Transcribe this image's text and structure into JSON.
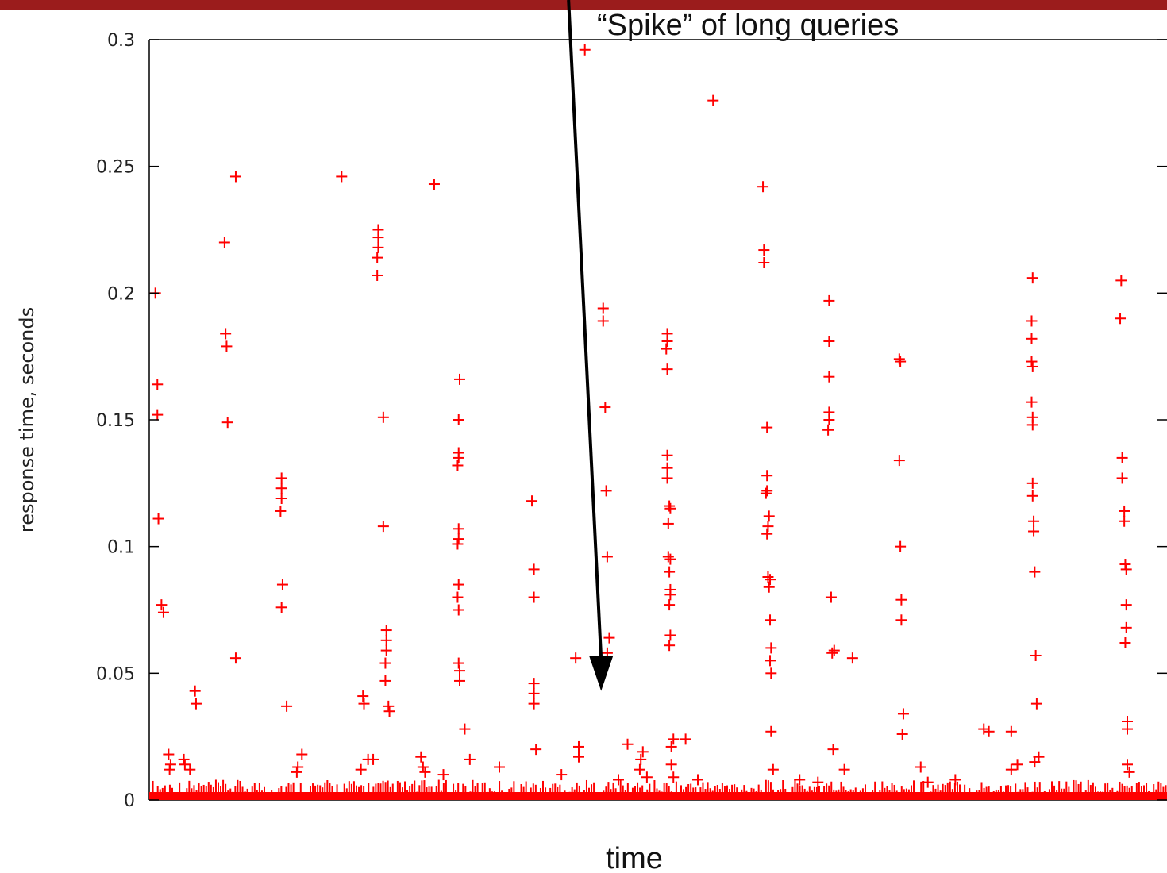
{
  "page": {
    "top_bar_color": "#9b1c1c"
  },
  "chart_data": {
    "type": "scatter",
    "title": "",
    "xlabel": "time",
    "ylabel": "response time, seconds",
    "xlim": [
      0,
      100
    ],
    "ylim": [
      0,
      0.3
    ],
    "yticks": [
      0,
      0.05,
      0.1,
      0.15,
      0.2,
      0.25,
      0.3
    ],
    "ytick_labels": [
      "0",
      "0.05",
      "0.1",
      "0.15",
      "0.2",
      "0.25",
      "0.3"
    ],
    "grid": false,
    "legend": "none",
    "marker": "+",
    "color": "#ff0000",
    "annotation": {
      "text": "“Spike” of long queries",
      "arrow_from": [
        41.2,
        0.31
      ],
      "arrow_to": [
        44.4,
        0.043
      ]
    },
    "series": [
      {
        "points": [
          [
            0.6,
            0.2
          ],
          [
            0.8,
            0.164
          ],
          [
            0.8,
            0.152
          ],
          [
            0.9,
            0.111
          ],
          [
            1.2,
            0.077
          ],
          [
            1.4,
            0.074
          ],
          [
            4.5,
            0.043
          ],
          [
            4.6,
            0.038
          ],
          [
            7.5,
            0.184
          ],
          [
            7.6,
            0.179
          ],
          [
            7.4,
            0.22
          ],
          [
            7.7,
            0.149
          ],
          [
            8.5,
            0.246
          ],
          [
            8.5,
            0.056
          ],
          [
            13.0,
            0.127
          ],
          [
            13.0,
            0.123
          ],
          [
            13.0,
            0.119
          ],
          [
            12.9,
            0.114
          ],
          [
            13.1,
            0.085
          ],
          [
            13.0,
            0.076
          ],
          [
            13.5,
            0.037
          ],
          [
            18.9,
            0.246
          ],
          [
            21.0,
            0.041
          ],
          [
            21.1,
            0.038
          ],
          [
            22.5,
            0.225
          ],
          [
            22.5,
            0.222
          ],
          [
            22.5,
            0.218
          ],
          [
            22.4,
            0.214
          ],
          [
            22.4,
            0.207
          ],
          [
            23.0,
            0.151
          ],
          [
            23.0,
            0.108
          ],
          [
            23.3,
            0.067
          ],
          [
            23.3,
            0.063
          ],
          [
            23.3,
            0.059
          ],
          [
            23.2,
            0.054
          ],
          [
            23.2,
            0.047
          ],
          [
            23.5,
            0.037
          ],
          [
            23.6,
            0.035
          ],
          [
            28.0,
            0.243
          ],
          [
            30.5,
            0.166
          ],
          [
            30.4,
            0.15
          ],
          [
            30.4,
            0.137
          ],
          [
            30.4,
            0.135
          ],
          [
            30.3,
            0.132
          ],
          [
            30.4,
            0.107
          ],
          [
            30.4,
            0.103
          ],
          [
            30.3,
            0.101
          ],
          [
            30.4,
            0.085
          ],
          [
            30.3,
            0.08
          ],
          [
            30.4,
            0.075
          ],
          [
            30.4,
            0.054
          ],
          [
            30.5,
            0.051
          ],
          [
            30.5,
            0.047
          ],
          [
            31.0,
            0.028
          ],
          [
            37.6,
            0.118
          ],
          [
            37.8,
            0.091
          ],
          [
            37.8,
            0.08
          ],
          [
            37.8,
            0.046
          ],
          [
            37.8,
            0.042
          ],
          [
            37.8,
            0.038
          ],
          [
            38.0,
            0.02
          ],
          [
            41.9,
            0.056
          ],
          [
            42.2,
            0.021
          ],
          [
            42.2,
            0.017
          ],
          [
            42.8,
            0.296
          ],
          [
            44.6,
            0.194
          ],
          [
            44.6,
            0.189
          ],
          [
            44.8,
            0.155
          ],
          [
            44.9,
            0.122
          ],
          [
            45.0,
            0.096
          ],
          [
            45.2,
            0.064
          ],
          [
            45.0,
            0.058
          ],
          [
            47.0,
            0.022
          ],
          [
            48.3,
            0.016
          ],
          [
            48.5,
            0.019
          ],
          [
            48.2,
            0.012
          ],
          [
            50.9,
            0.184
          ],
          [
            50.9,
            0.181
          ],
          [
            50.8,
            0.178
          ],
          [
            50.9,
            0.17
          ],
          [
            50.9,
            0.136
          ],
          [
            50.9,
            0.131
          ],
          [
            50.9,
            0.127
          ],
          [
            51.1,
            0.116
          ],
          [
            51.2,
            0.115
          ],
          [
            51.0,
            0.109
          ],
          [
            51.0,
            0.096
          ],
          [
            51.2,
            0.095
          ],
          [
            51.1,
            0.09
          ],
          [
            51.2,
            0.083
          ],
          [
            51.2,
            0.081
          ],
          [
            51.1,
            0.077
          ],
          [
            51.2,
            0.065
          ],
          [
            51.1,
            0.061
          ],
          [
            51.5,
            0.024
          ],
          [
            51.3,
            0.021
          ],
          [
            52.7,
            0.024
          ],
          [
            55.4,
            0.276
          ],
          [
            60.3,
            0.242
          ],
          [
            60.4,
            0.217
          ],
          [
            60.4,
            0.212
          ],
          [
            60.7,
            0.147
          ],
          [
            60.7,
            0.128
          ],
          [
            60.7,
            0.122
          ],
          [
            60.6,
            0.121
          ],
          [
            60.9,
            0.112
          ],
          [
            60.8,
            0.108
          ],
          [
            60.7,
            0.105
          ],
          [
            60.8,
            0.088
          ],
          [
            61.0,
            0.087
          ],
          [
            60.9,
            0.084
          ],
          [
            61.0,
            0.071
          ],
          [
            61.1,
            0.06
          ],
          [
            61.0,
            0.055
          ],
          [
            61.1,
            0.05
          ],
          [
            61.1,
            0.027
          ],
          [
            61.3,
            0.012
          ],
          [
            66.8,
            0.197
          ],
          [
            66.8,
            0.181
          ],
          [
            66.8,
            0.167
          ],
          [
            66.8,
            0.153
          ],
          [
            66.8,
            0.15
          ],
          [
            66.7,
            0.146
          ],
          [
            67.0,
            0.08
          ],
          [
            67.3,
            0.059
          ],
          [
            67.1,
            0.058
          ],
          [
            67.2,
            0.02
          ],
          [
            69.1,
            0.056
          ],
          [
            73.7,
            0.174
          ],
          [
            73.8,
            0.173
          ],
          [
            73.7,
            0.134
          ],
          [
            73.8,
            0.1
          ],
          [
            73.9,
            0.079
          ],
          [
            73.9,
            0.071
          ],
          [
            74.1,
            0.034
          ],
          [
            74.0,
            0.026
          ],
          [
            75.8,
            0.013
          ],
          [
            82.0,
            0.028
          ],
          [
            82.5,
            0.027
          ],
          [
            84.7,
            0.027
          ],
          [
            86.8,
            0.206
          ],
          [
            86.7,
            0.189
          ],
          [
            86.7,
            0.182
          ],
          [
            86.7,
            0.173
          ],
          [
            86.8,
            0.171
          ],
          [
            86.7,
            0.157
          ],
          [
            86.8,
            0.151
          ],
          [
            86.8,
            0.148
          ],
          [
            86.8,
            0.125
          ],
          [
            86.8,
            0.12
          ],
          [
            86.9,
            0.11
          ],
          [
            86.9,
            0.106
          ],
          [
            87.0,
            0.09
          ],
          [
            87.1,
            0.057
          ],
          [
            87.2,
            0.038
          ],
          [
            87.0,
            0.015
          ],
          [
            87.4,
            0.017
          ],
          [
            95.5,
            0.205
          ],
          [
            95.4,
            0.19
          ],
          [
            95.6,
            0.135
          ],
          [
            95.6,
            0.127
          ],
          [
            95.8,
            0.114
          ],
          [
            95.8,
            0.11
          ],
          [
            95.9,
            0.093
          ],
          [
            96.0,
            0.091
          ],
          [
            96.0,
            0.077
          ],
          [
            96.0,
            0.068
          ],
          [
            95.9,
            0.062
          ],
          [
            96.1,
            0.031
          ],
          [
            96.1,
            0.028
          ],
          [
            96.1,
            0.014
          ],
          [
            96.3,
            0.011
          ],
          [
            1.9,
            0.018
          ],
          [
            2.1,
            0.014
          ],
          [
            2.0,
            0.012
          ],
          [
            3.4,
            0.016
          ],
          [
            3.5,
            0.014
          ],
          [
            4.0,
            0.012
          ],
          [
            14.6,
            0.013
          ],
          [
            15.0,
            0.018
          ],
          [
            14.5,
            0.011
          ],
          [
            20.8,
            0.012
          ],
          [
            21.5,
            0.016
          ],
          [
            22.0,
            0.016
          ],
          [
            26.7,
            0.017
          ],
          [
            26.9,
            0.013
          ],
          [
            27.1,
            0.011
          ],
          [
            28.9,
            0.01
          ],
          [
            31.5,
            0.016
          ],
          [
            34.4,
            0.013
          ],
          [
            40.5,
            0.01
          ],
          [
            46.1,
            0.008
          ],
          [
            48.9,
            0.009
          ],
          [
            51.3,
            0.014
          ],
          [
            51.5,
            0.009
          ],
          [
            53.9,
            0.008
          ],
          [
            63.9,
            0.008
          ],
          [
            65.7,
            0.007
          ],
          [
            68.3,
            0.012
          ],
          [
            76.5,
            0.007
          ],
          [
            79.2,
            0.008
          ],
          [
            84.7,
            0.012
          ],
          [
            85.3,
            0.014
          ]
        ]
      }
    ]
  }
}
